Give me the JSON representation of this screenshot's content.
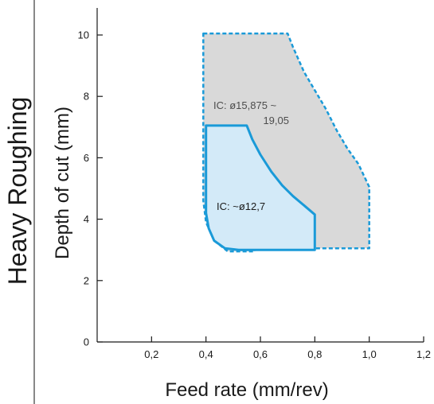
{
  "page": {
    "side_title": "Heavy Roughing"
  },
  "chart_data": {
    "type": "area",
    "title": "",
    "xlabel": "Feed rate (mm/rev)",
    "ylabel": "Depth of cut (mm)",
    "xlim": [
      0,
      1.2
    ],
    "ylim": [
      0,
      10.5
    ],
    "x_ticks": [
      {
        "value": 0.2,
        "label": "0,2"
      },
      {
        "value": 0.4,
        "label": "0,4"
      },
      {
        "value": 0.6,
        "label": "0,6"
      },
      {
        "value": 0.8,
        "label": "0,8"
      },
      {
        "value": 1.0,
        "label": "1,0"
      },
      {
        "value": 1.2,
        "label": "1,2"
      }
    ],
    "y_ticks": [
      {
        "value": 0,
        "label": "0"
      },
      {
        "value": 2,
        "label": "2"
      },
      {
        "value": 4,
        "label": "4"
      },
      {
        "value": 6,
        "label": "6"
      },
      {
        "value": 8,
        "label": "8"
      },
      {
        "value": 10,
        "label": "10"
      }
    ],
    "grid": false,
    "series": [
      {
        "name": "IC: ø15,875 ~ 19,05",
        "label_lines": [
          "IC: ø15,875 ~",
          "19,05"
        ],
        "fill": "#d9d9d9",
        "stroke": "#1a9ad8",
        "line_style": "dashed",
        "points": [
          [
            0.39,
            10.05
          ],
          [
            0.7,
            10.05
          ],
          [
            0.72,
            9.6
          ],
          [
            0.76,
            8.8
          ],
          [
            0.8,
            8.2
          ],
          [
            0.84,
            7.6
          ],
          [
            0.88,
            6.9
          ],
          [
            0.92,
            6.3
          ],
          [
            0.96,
            5.8
          ],
          [
            1.0,
            5.05
          ],
          [
            1.0,
            3.05
          ],
          [
            0.58,
            3.05
          ],
          [
            0.58,
            2.95
          ],
          [
            0.48,
            2.95
          ],
          [
            0.43,
            3.3
          ],
          [
            0.4,
            3.9
          ],
          [
            0.39,
            4.6
          ]
        ]
      },
      {
        "name": "IC: ~ø12,7",
        "label_lines": [
          "IC: ~ø12,7"
        ],
        "fill": "#d3eaf8",
        "stroke": "#1a9ad8",
        "line_style": "solid",
        "points": [
          [
            0.4,
            7.05
          ],
          [
            0.55,
            7.05
          ],
          [
            0.57,
            6.6
          ],
          [
            0.6,
            6.1
          ],
          [
            0.64,
            5.55
          ],
          [
            0.68,
            5.1
          ],
          [
            0.72,
            4.75
          ],
          [
            0.76,
            4.45
          ],
          [
            0.8,
            4.15
          ],
          [
            0.8,
            3.0
          ],
          [
            0.52,
            3.0
          ],
          [
            0.47,
            3.05
          ],
          [
            0.43,
            3.3
          ],
          [
            0.41,
            3.7
          ],
          [
            0.4,
            4.2
          ]
        ]
      }
    ]
  }
}
